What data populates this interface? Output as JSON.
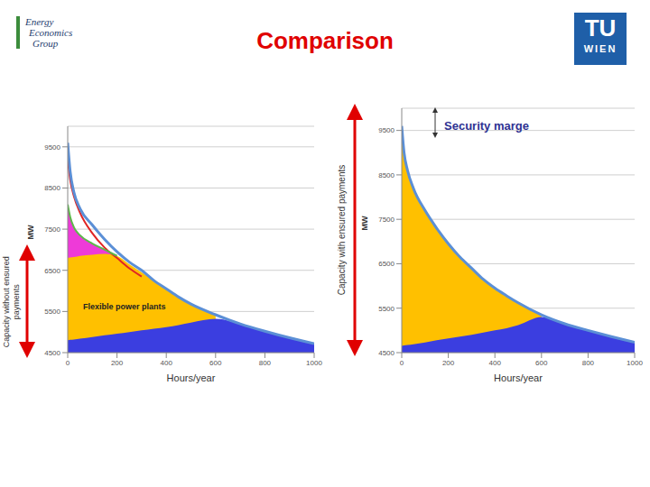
{
  "title": "Comparison",
  "logos": {
    "left": [
      "Energy",
      "Economics",
      "Group"
    ],
    "right": [
      "TU",
      "WIEN"
    ]
  },
  "chart_data": [
    {
      "type": "area",
      "side_label": "Capacity without ensured payments",
      "annotation": "Flexible power plants",
      "x_label": "Hours/year",
      "y_label": "MW",
      "x": [
        0,
        10,
        25,
        50,
        100,
        150,
        200,
        250,
        300,
        350,
        400,
        450,
        500,
        600,
        700,
        800,
        900,
        1000
      ],
      "xlim": [
        0,
        1000
      ],
      "xticks": [
        0,
        200,
        400,
        600,
        800,
        1000
      ],
      "ylim": [
        4500,
        10000
      ],
      "yticks": [
        4500,
        5500,
        6500,
        7500,
        8500,
        9500
      ],
      "grid": true,
      "series": [
        {
          "type": "area",
          "color": "#ee3ad8",
          "values": [
            8100,
            7800,
            7550,
            7350,
            7150,
            7000,
            6850,
            null,
            null,
            null,
            null,
            null,
            null,
            null,
            null,
            null,
            null,
            null
          ]
        },
        {
          "type": "area",
          "color": "#ffc000",
          "values": [
            6800,
            6810,
            6820,
            6850,
            6880,
            6900,
            6850,
            6650,
            6450,
            6250,
            6030,
            5850,
            5680,
            5420,
            null,
            null,
            null,
            null
          ]
        },
        {
          "type": "area",
          "color": "#3b3ee0",
          "values": [
            4800,
            4810,
            4820,
            4840,
            4880,
            4920,
            4960,
            5000,
            5040,
            5080,
            5120,
            5170,
            5230,
            5320,
            5200,
            5020,
            4860,
            4720
          ]
        },
        {
          "type": "line",
          "color": "#e02424",
          "values": [
            9200,
            8700,
            8300,
            7900,
            7400,
            7050,
            6800,
            6550,
            6350,
            null,
            null,
            null,
            null,
            null,
            null,
            null,
            null,
            null
          ]
        },
        {
          "type": "line",
          "color": "#5cb84a",
          "values": [
            8100,
            7800,
            7550,
            7350,
            7150,
            7000,
            6850,
            null,
            null,
            null,
            null,
            null,
            null,
            null,
            null,
            null,
            null,
            null
          ]
        },
        {
          "type": "line",
          "color": "#5b8fd6",
          "values": [
            9600,
            8900,
            8400,
            8000,
            7600,
            7250,
            6950,
            6700,
            6500,
            6250,
            6050,
            5850,
            5680,
            5420,
            5200,
            5020,
            4860,
            4720
          ]
        }
      ]
    },
    {
      "type": "area",
      "side_label": "Capacity with ensured payments",
      "annotation": "Security marge",
      "x_label": "Hours/year",
      "y_label": "MW",
      "x": [
        0,
        10,
        25,
        50,
        100,
        150,
        200,
        250,
        300,
        350,
        400,
        450,
        500,
        600,
        700,
        800,
        900,
        1000
      ],
      "xlim": [
        0,
        1000
      ],
      "xticks": [
        0,
        200,
        400,
        600,
        800,
        1000
      ],
      "ylim": [
        4500,
        10000
      ],
      "yticks": [
        4500,
        5500,
        6500,
        7500,
        8500,
        9500
      ],
      "grid": true,
      "series": [
        {
          "type": "area",
          "color": "#ffc000",
          "values": [
            9600,
            9000,
            8600,
            8200,
            7700,
            7300,
            6950,
            6650,
            6400,
            6150,
            5950,
            5780,
            5620,
            5350,
            null,
            null,
            null,
            null
          ]
        },
        {
          "type": "area",
          "color": "#3b3ee0",
          "values": [
            4650,
            4660,
            4670,
            4690,
            4730,
            4780,
            4820,
            4860,
            4900,
            4950,
            5000,
            5050,
            5120,
            5300,
            5150,
            5000,
            4860,
            4730
          ]
        },
        {
          "type": "line",
          "color": "#5b8fd6",
          "values": [
            9600,
            9000,
            8600,
            8200,
            7700,
            7300,
            6950,
            6650,
            6400,
            6150,
            5950,
            5780,
            5620,
            5350,
            5150,
            5000,
            4860,
            4730
          ]
        }
      ]
    }
  ]
}
